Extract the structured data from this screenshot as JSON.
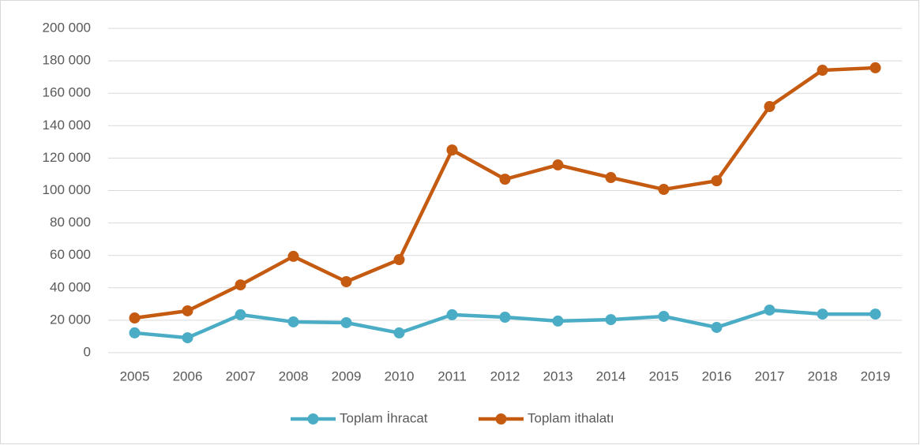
{
  "chart_data": {
    "type": "line",
    "categories": [
      "2005",
      "2006",
      "2007",
      "2008",
      "2009",
      "2010",
      "2011",
      "2012",
      "2013",
      "2014",
      "2015",
      "2016",
      "2017",
      "2018",
      "2019"
    ],
    "series": [
      {
        "name": "Toplam İhracat",
        "color": "#4bacc6",
        "values": [
          12200,
          9200,
          23400,
          19000,
          18500,
          12200,
          23400,
          21900,
          19500,
          20400,
          22400,
          15600,
          26300,
          23800,
          23800
        ]
      },
      {
        "name": "Toplam ithalatı",
        "color": "#c55a11",
        "values": [
          21400,
          25800,
          41800,
          59400,
          43800,
          57400,
          125000,
          107000,
          115800,
          108000,
          100700,
          106000,
          151800,
          174200,
          175700
        ]
      }
    ],
    "ylim": [
      0,
      200000
    ],
    "yticks": [
      0,
      {
        "value": 20000,
        "label": "20 000"
      },
      {
        "value": 40000,
        "label": "40 000"
      },
      {
        "value": 60000,
        "label": "60 000"
      },
      {
        "value": 80000,
        "label": "80 000"
      },
      {
        "value": 100000,
        "label": "100 000"
      },
      {
        "value": 120000,
        "label": "120 000"
      },
      {
        "value": 140000,
        "label": "140 000"
      },
      {
        "value": 160000,
        "label": "160 000"
      },
      {
        "value": 180000,
        "label": "180 000"
      },
      {
        "value": 200000,
        "label": "200 000"
      }
    ],
    "grid": true,
    "legend": "bottom"
  }
}
